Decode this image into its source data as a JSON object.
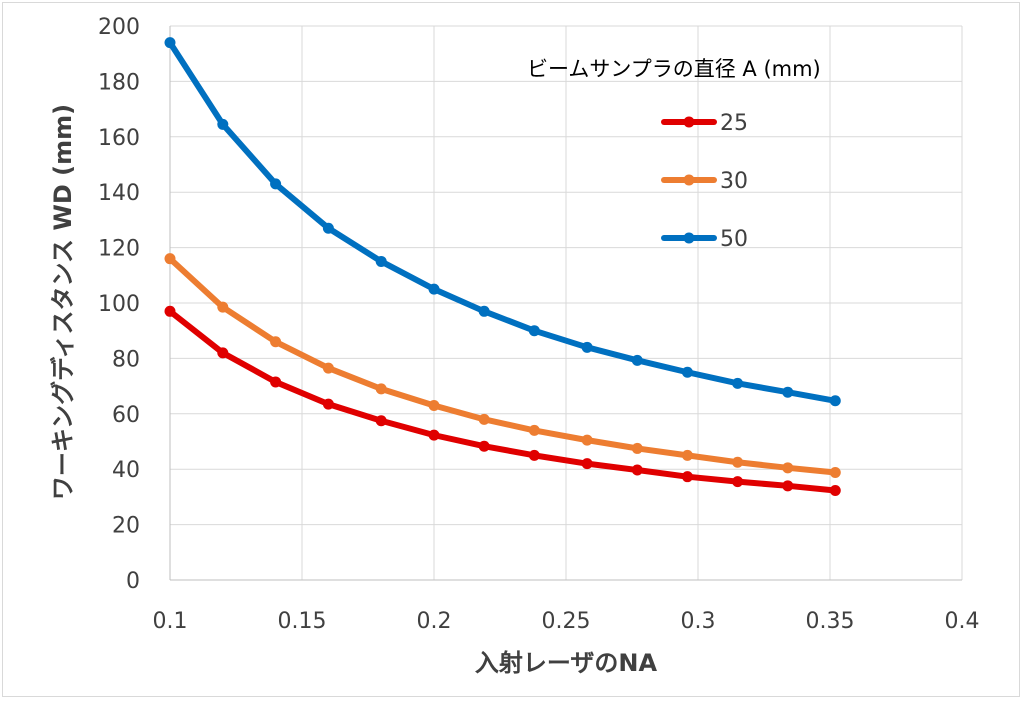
{
  "chart_data": {
    "type": "line",
    "title": "",
    "xlabel": "入射レーザのNA",
    "ylabel": "ワーキングディスタンス WD (mm)",
    "xlim": [
      0.1,
      0.4
    ],
    "ylim": [
      0,
      200
    ],
    "x_ticks": [
      "0.1",
      "0.15",
      "0.2",
      "0.25",
      "0.3",
      "0.35",
      "0.4"
    ],
    "y_ticks": [
      "0",
      "20",
      "40",
      "60",
      "80",
      "100",
      "120",
      "140",
      "160",
      "180",
      "200"
    ],
    "grid": true,
    "legend_title": "ビームサンプラの直径 A (mm)",
    "legend_position": "top-right",
    "x": [
      0.1,
      0.12,
      0.14,
      0.16,
      0.18,
      0.2,
      0.219,
      0.238,
      0.258,
      0.277,
      0.296,
      0.315,
      0.334,
      0.352
    ],
    "series": [
      {
        "name": "25",
        "color": "#e00000",
        "values": [
          97,
          82,
          71.5,
          63.5,
          57.5,
          52.3,
          48.3,
          45,
          42,
          39.7,
          37.3,
          35.5,
          34,
          32.3
        ]
      },
      {
        "name": "30",
        "color": "#ed7d31",
        "values": [
          116,
          98.5,
          86,
          76.5,
          69,
          63,
          58,
          54,
          50.5,
          47.5,
          45,
          42.5,
          40.5,
          38.8
        ]
      },
      {
        "name": "50",
        "color": "#0070c0",
        "values": [
          194,
          164.5,
          143,
          127,
          115,
          105,
          97,
          90,
          84,
          79.3,
          75,
          71,
          67.8,
          64.7
        ]
      }
    ]
  }
}
